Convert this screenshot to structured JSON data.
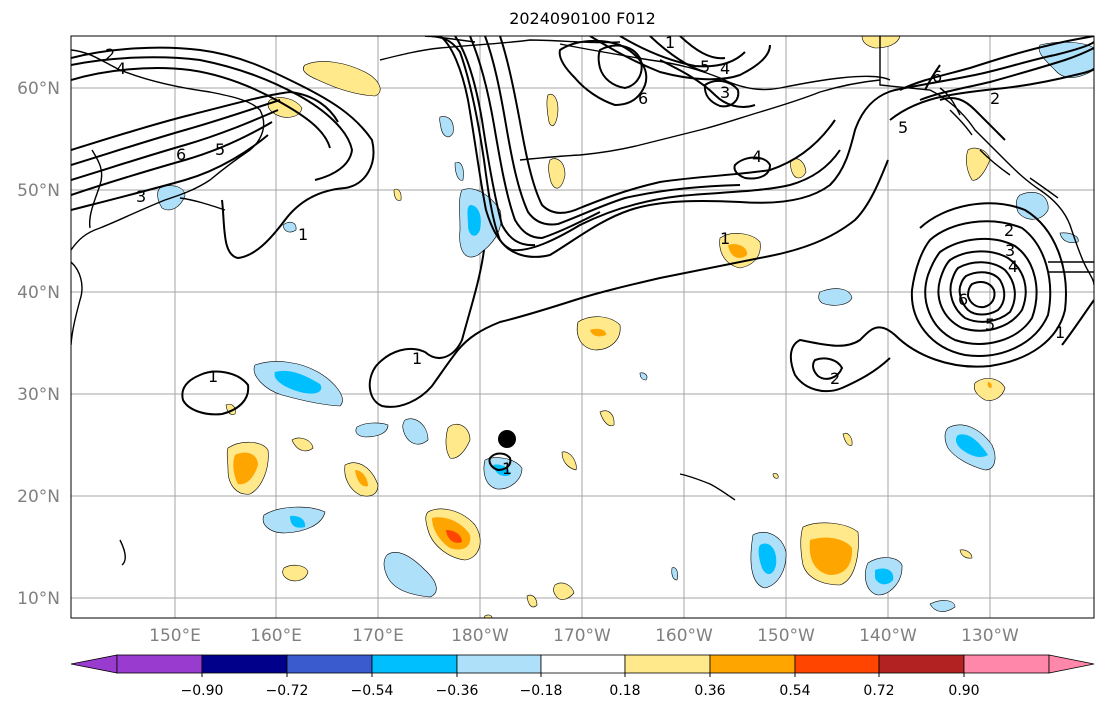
{
  "title": "2024090100 F012",
  "lat_labels": [
    "60°N",
    "50°N",
    "40°N",
    "30°N",
    "20°N",
    "10°N"
  ],
  "lon_labels": [
    "150°E",
    "160°E",
    "170°E",
    "180°W",
    "170°W",
    "160°W",
    "150°W",
    "140°W",
    "130°W"
  ],
  "colorbar": {
    "ticks": [
      "−0.90",
      "−0.72",
      "−0.54",
      "−0.36",
      "−0.18",
      "0.18",
      "0.36",
      "0.54",
      "0.72",
      "0.90"
    ],
    "colors": [
      "#9a3bd0",
      "#00008b",
      "#3a5bcd",
      "#00bfff",
      "#aee0fa",
      "#ffffff",
      "#ffe98a",
      "#ffa500",
      "#ff4500",
      "#b22222",
      "#ff88aa"
    ]
  },
  "contour_labels": [
    "2",
    "4",
    "6",
    "5",
    "3",
    "1",
    "1",
    "1",
    "1",
    "5",
    "4",
    "6",
    "3",
    "4",
    "1",
    "6",
    "2",
    "5",
    "2",
    "3",
    "4",
    "6",
    "5",
    "1",
    "2",
    "1"
  ],
  "fill_colors": {
    "light_blue": "#aee0fa",
    "blue": "#00bfff",
    "light_yellow": "#ffe98a",
    "orange": "#ffa500",
    "red_orange": "#ff4500"
  },
  "storm_marker_color": "#000000"
}
